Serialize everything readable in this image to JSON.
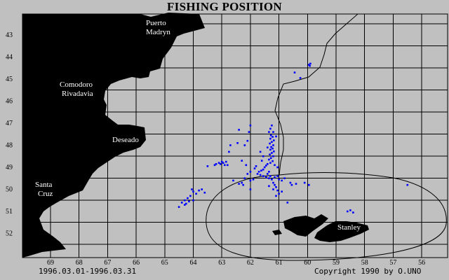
{
  "title": "FISHING POSITION",
  "footer": {
    "date_range": "1996.03.01-1996.03.31",
    "copyright": "Copyright 1990 by O.UNO"
  },
  "colors": {
    "background": "#c0c0c0",
    "land": "#000000",
    "grid": "#000000",
    "points": "#0000ff"
  },
  "axes": {
    "longitude_ticks": [
      "69",
      "68",
      "67",
      "66",
      "65",
      "64",
      "63",
      "62",
      "61",
      "60",
      "59",
      "58",
      "57",
      "56"
    ],
    "latitude_ticks": [
      "43",
      "44",
      "45",
      "46",
      "47",
      "48",
      "49",
      "50",
      "51",
      "52"
    ]
  },
  "places": [
    {
      "lines": [
        "Puerto",
        "Madryn"
      ]
    },
    {
      "lines": [
        "Comodoro",
        "Rivadavia"
      ]
    },
    {
      "lines": [
        "Deseado"
      ]
    },
    {
      "lines": [
        "Santa",
        "Cruz"
      ]
    },
    {
      "lines": [
        "Stanley"
      ]
    }
  ],
  "fishing_positions": [
    [
      59.9,
      44.3
    ],
    [
      59.95,
      44.35
    ],
    [
      59.92,
      44.4
    ],
    [
      60.25,
      44.95
    ],
    [
      60.45,
      44.7
    ],
    [
      61.25,
      47.1
    ],
    [
      61.3,
      47.25
    ],
    [
      61.2,
      47.4
    ],
    [
      61.28,
      47.55
    ],
    [
      61.22,
      47.62
    ],
    [
      61.3,
      47.7
    ],
    [
      61.18,
      47.78
    ],
    [
      61.25,
      47.85
    ],
    [
      61.32,
      47.92
    ],
    [
      61.2,
      48.0
    ],
    [
      61.27,
      48.08
    ],
    [
      61.22,
      48.15
    ],
    [
      61.3,
      48.2
    ],
    [
      61.18,
      48.28
    ],
    [
      61.25,
      48.35
    ],
    [
      61.32,
      48.42
    ],
    [
      61.2,
      48.5
    ],
    [
      61.28,
      48.58
    ],
    [
      61.35,
      48.65
    ],
    [
      61.22,
      48.72
    ],
    [
      61.3,
      48.8
    ],
    [
      61.4,
      48.85
    ],
    [
      61.45,
      48.92
    ],
    [
      61.5,
      49.0
    ],
    [
      61.55,
      49.1
    ],
    [
      61.62,
      49.15
    ],
    [
      61.7,
      49.2
    ],
    [
      61.75,
      49.3
    ],
    [
      61.65,
      49.35
    ],
    [
      61.55,
      49.4
    ],
    [
      61.45,
      49.45
    ],
    [
      61.35,
      49.5
    ],
    [
      61.25,
      49.55
    ],
    [
      61.15,
      49.45
    ],
    [
      61.05,
      49.4
    ],
    [
      61.8,
      48.95
    ],
    [
      61.85,
      49.05
    ],
    [
      61.6,
      48.7
    ],
    [
      61.55,
      48.5
    ],
    [
      61.65,
      48.3
    ],
    [
      61.4,
      48.1
    ],
    [
      61.35,
      47.4
    ],
    [
      61.1,
      47.6
    ],
    [
      61.15,
      48.9
    ],
    [
      61.05,
      49.0
    ],
    [
      62.0,
      47.1
    ],
    [
      62.05,
      47.4
    ],
    [
      62.1,
      47.8
    ],
    [
      62.2,
      48.0
    ],
    [
      62.4,
      47.3
    ],
    [
      62.45,
      47.9
    ],
    [
      62.7,
      48.0
    ],
    [
      62.75,
      48.3
    ],
    [
      62.3,
      48.7
    ],
    [
      62.15,
      48.9
    ],
    [
      63.0,
      48.75
    ],
    [
      63.05,
      48.85
    ],
    [
      62.95,
      48.8
    ],
    [
      62.85,
      48.75
    ],
    [
      62.9,
      48.9
    ],
    [
      63.1,
      48.8
    ],
    [
      63.2,
      48.85
    ],
    [
      63.25,
      48.9
    ],
    [
      62.8,
      48.9
    ],
    [
      63.5,
      48.95
    ],
    [
      62.0,
      49.2
    ],
    [
      62.1,
      49.3
    ],
    [
      62.2,
      49.5
    ],
    [
      62.3,
      49.7
    ],
    [
      62.4,
      49.75
    ],
    [
      62.25,
      49.8
    ],
    [
      62.0,
      49.6
    ],
    [
      61.9,
      49.55
    ],
    [
      62.6,
      49.6
    ],
    [
      62.0,
      50.0
    ],
    [
      61.2,
      49.7
    ],
    [
      61.15,
      49.8
    ],
    [
      61.1,
      49.9
    ],
    [
      61.2,
      50.0
    ],
    [
      61.35,
      49.85
    ],
    [
      61.05,
      50.05
    ],
    [
      60.9,
      50.1
    ],
    [
      61.0,
      50.2
    ],
    [
      61.1,
      50.3
    ],
    [
      60.7,
      50.6
    ],
    [
      60.6,
      49.7
    ],
    [
      60.55,
      49.8
    ],
    [
      60.4,
      49.75
    ],
    [
      60.1,
      49.7
    ],
    [
      59.95,
      49.8
    ],
    [
      60.9,
      49.6
    ],
    [
      61.0,
      49.55
    ],
    [
      61.3,
      49.4
    ],
    [
      61.4,
      49.3
    ],
    [
      61.35,
      49.2
    ],
    [
      63.7,
      50.0
    ],
    [
      63.8,
      50.05
    ],
    [
      64.0,
      50.1
    ],
    [
      64.05,
      50.0
    ],
    [
      63.9,
      50.2
    ],
    [
      64.1,
      50.3
    ],
    [
      64.2,
      50.4
    ],
    [
      64.3,
      50.5
    ],
    [
      64.4,
      50.6
    ],
    [
      64.15,
      50.55
    ],
    [
      64.3,
      50.7
    ],
    [
      64.5,
      50.8
    ],
    [
      64.25,
      50.65
    ],
    [
      64.0,
      50.5
    ],
    [
      63.6,
      50.15
    ],
    [
      58.6,
      51.0
    ],
    [
      58.5,
      50.95
    ],
    [
      58.4,
      51.05
    ],
    [
      56.5,
      49.8
    ],
    [
      60.8,
      49.5
    ]
  ]
}
